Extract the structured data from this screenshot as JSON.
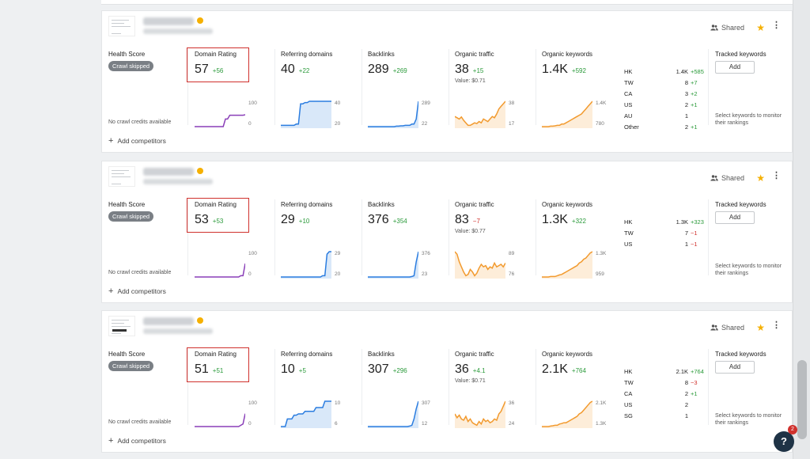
{
  "colors": {
    "accent_blue": "#2b7de0",
    "purple": "#8a3fb8",
    "orange": "#f29a2e",
    "red_box": "#d0312d",
    "green": "#2a9a3a",
    "star": "#f5b000"
  },
  "labels": {
    "health_score": "Health Score",
    "crawl_skipped": "Crawl skipped",
    "no_crawl": "No crawl credits available",
    "domain_rating": "Domain Rating",
    "referring_domains": "Referring domains",
    "backlinks": "Backlinks",
    "organic_traffic": "Organic traffic",
    "organic_keywords": "Organic keywords",
    "tracked_keywords": "Tracked keywords",
    "add": "Add",
    "tracked_hint": "Select keywords to monitor their rankings",
    "add_competitors": "Add competitors",
    "shared": "Shared"
  },
  "projects": [
    {
      "dr": {
        "value": "57",
        "change": "+56",
        "max": "100",
        "min": "0",
        "line": [
          0,
          0,
          0,
          0,
          0,
          0,
          0,
          0,
          0,
          0,
          0,
          0,
          0,
          0,
          0.3,
          0.3,
          0.45,
          0.45,
          0.45,
          0.45,
          0.45,
          0.45,
          0.45,
          0.47
        ]
      },
      "rd": {
        "value": "40",
        "change": "+22",
        "max": "40",
        "min": "20",
        "line": [
          0.05,
          0.05,
          0.05,
          0.05,
          0.05,
          0.05,
          0.05,
          0.1,
          0.1,
          0.9,
          0.9,
          0.95,
          0.95,
          1,
          1,
          1,
          1,
          1,
          1,
          1,
          1,
          1,
          1,
          1
        ]
      },
      "bl": {
        "value": "289",
        "change": "+269",
        "max": "289",
        "min": "22",
        "line": [
          0,
          0,
          0,
          0,
          0,
          0,
          0,
          0,
          0,
          0,
          0,
          0,
          0,
          0.02,
          0.02,
          0.03,
          0.03,
          0.05,
          0.05,
          0.05,
          0.1,
          0.1,
          0.3,
          1
        ]
      },
      "ot": {
        "value": "38",
        "change": "+15",
        "value_label": "Value: $0.71",
        "max": "38",
        "min": "17",
        "line": [
          0.4,
          0.35,
          0.3,
          0.38,
          0.25,
          0.15,
          0.05,
          0.05,
          0.1,
          0.15,
          0.12,
          0.2,
          0.15,
          0.3,
          0.25,
          0.2,
          0.3,
          0.4,
          0.35,
          0.5,
          0.7,
          0.8,
          0.9,
          1
        ]
      },
      "ok": {
        "value": "1.4K",
        "change": "+592",
        "max": "1.4K",
        "min": "780",
        "line": [
          0,
          0,
          0,
          0,
          0.02,
          0.02,
          0.03,
          0.05,
          0.05,
          0.1,
          0.1,
          0.15,
          0.2,
          0.25,
          0.3,
          0.35,
          0.4,
          0.45,
          0.5,
          0.6,
          0.7,
          0.8,
          0.9,
          1
        ]
      },
      "countries": [
        {
          "code": "HK",
          "value": "1.4K",
          "change": "+585",
          "type": "pos"
        },
        {
          "code": "TW",
          "value": "8",
          "change": "+7",
          "type": "pos"
        },
        {
          "code": "CA",
          "value": "3",
          "change": "+2",
          "type": "pos"
        },
        {
          "code": "US",
          "value": "2",
          "change": "+1",
          "type": "pos"
        },
        {
          "code": "AU",
          "value": "1",
          "change": "",
          "type": "pos"
        },
        {
          "code": "Other",
          "value": "2",
          "change": "+1",
          "type": "pos"
        }
      ]
    },
    {
      "dr": {
        "value": "53",
        "change": "+53",
        "max": "100",
        "min": "0",
        "line": [
          0,
          0,
          0,
          0,
          0,
          0,
          0,
          0,
          0,
          0,
          0,
          0,
          0,
          0,
          0,
          0,
          0,
          0,
          0,
          0,
          0,
          0.05,
          0.05,
          0.53
        ]
      },
      "rd": {
        "value": "29",
        "change": "+10",
        "max": "29",
        "min": "20",
        "line": [
          0,
          0,
          0,
          0,
          0,
          0,
          0,
          0,
          0,
          0,
          0,
          0,
          0,
          0,
          0,
          0,
          0,
          0,
          0,
          0.05,
          0.05,
          0.9,
          1,
          1
        ]
      },
      "bl": {
        "value": "376",
        "change": "+354",
        "max": "376",
        "min": "23",
        "line": [
          0,
          0,
          0,
          0,
          0,
          0,
          0,
          0,
          0,
          0,
          0,
          0,
          0,
          0,
          0,
          0,
          0,
          0,
          0,
          0,
          0.02,
          0.05,
          0.6,
          1
        ]
      },
      "ot": {
        "value": "83",
        "change": "−7",
        "change_type": "neg",
        "value_label": "Value: $0.77",
        "max": "89",
        "min": "76",
        "line": [
          1,
          0.9,
          0.6,
          0.4,
          0.2,
          0.05,
          0.1,
          0.3,
          0.2,
          0.05,
          0.15,
          0.35,
          0.5,
          0.4,
          0.45,
          0.3,
          0.4,
          0.35,
          0.55,
          0.4,
          0.45,
          0.5,
          0.4,
          0.55
        ]
      },
      "ok": {
        "value": "1.3K",
        "change": "+322",
        "max": "1.3K",
        "min": "959",
        "line": [
          0,
          0,
          0,
          0,
          0.02,
          0.02,
          0.02,
          0.05,
          0.08,
          0.1,
          0.15,
          0.2,
          0.25,
          0.3,
          0.35,
          0.4,
          0.45,
          0.55,
          0.6,
          0.7,
          0.75,
          0.85,
          0.95,
          1
        ]
      },
      "countries": [
        {
          "code": "HK",
          "value": "1.3K",
          "change": "+323",
          "type": "pos"
        },
        {
          "code": "TW",
          "value": "7",
          "change": "−1",
          "type": "neg"
        },
        {
          "code": "US",
          "value": "1",
          "change": "−1",
          "type": "neg"
        }
      ]
    },
    {
      "dr": {
        "value": "51",
        "change": "+51",
        "max": "100",
        "min": "0",
        "line": [
          0,
          0,
          0,
          0,
          0,
          0,
          0,
          0,
          0,
          0,
          0,
          0,
          0,
          0,
          0,
          0,
          0,
          0,
          0,
          0,
          0,
          0.05,
          0.1,
          0.51
        ]
      },
      "rd": {
        "value": "10",
        "change": "+5",
        "max": "10",
        "min": "6",
        "line": [
          0,
          0,
          0,
          0.3,
          0.3,
          0.3,
          0.45,
          0.45,
          0.5,
          0.5,
          0.5,
          0.6,
          0.6,
          0.6,
          0.6,
          0.6,
          0.75,
          0.75,
          0.75,
          0.75,
          1,
          1,
          1,
          1
        ]
      },
      "bl": {
        "value": "307",
        "change": "+296",
        "max": "307",
        "min": "12",
        "line": [
          0,
          0,
          0,
          0,
          0,
          0,
          0,
          0,
          0,
          0,
          0,
          0,
          0,
          0,
          0,
          0,
          0,
          0,
          0,
          0.02,
          0.05,
          0.3,
          0.7,
          1
        ]
      },
      "ot": {
        "value": "36",
        "change": "+4.1",
        "value_label": "Value: $0.71",
        "max": "36",
        "min": "24",
        "line": [
          0.5,
          0.35,
          0.45,
          0.3,
          0.25,
          0.4,
          0.2,
          0.3,
          0.15,
          0.1,
          0.05,
          0.2,
          0.1,
          0.3,
          0.2,
          0.25,
          0.15,
          0.2,
          0.3,
          0.25,
          0.5,
          0.6,
          0.8,
          1
        ]
      },
      "ok": {
        "value": "2.1K",
        "change": "+764",
        "max": "2.1K",
        "min": "1.3K",
        "line": [
          0,
          0,
          0,
          0,
          0.02,
          0.03,
          0.05,
          0.05,
          0.1,
          0.12,
          0.15,
          0.15,
          0.2,
          0.25,
          0.3,
          0.35,
          0.4,
          0.5,
          0.55,
          0.65,
          0.75,
          0.85,
          0.95,
          1
        ]
      },
      "countries": [
        {
          "code": "HK",
          "value": "2.1K",
          "change": "+764",
          "type": "pos"
        },
        {
          "code": "TW",
          "value": "8",
          "change": "−3",
          "type": "neg"
        },
        {
          "code": "CA",
          "value": "2",
          "change": "+1",
          "type": "pos"
        },
        {
          "code": "US",
          "value": "2",
          "change": "",
          "type": "pos"
        },
        {
          "code": "SG",
          "value": "1",
          "change": "",
          "type": "pos"
        }
      ]
    }
  ],
  "help": {
    "label": "?",
    "badge": "2"
  }
}
